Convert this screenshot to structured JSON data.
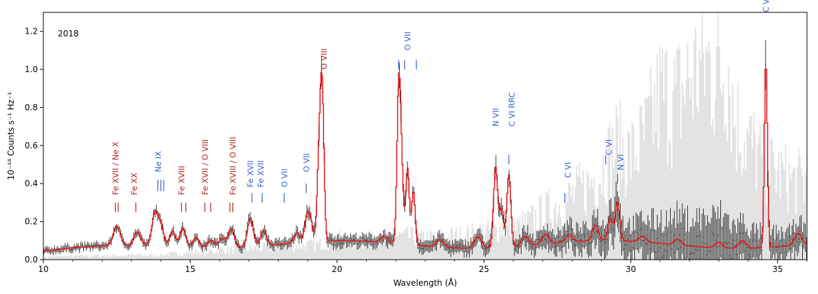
{
  "chart_data": {
    "type": "line",
    "title": "",
    "annotation_year": "2018",
    "xlabel": "Wavelength (Å)",
    "ylabel": "10⁻¹⁸ Counts s⁻¹ Hz⁻¹",
    "xlim": [
      10,
      36
    ],
    "ylim": [
      0,
      1.3
    ],
    "xticks": [
      10,
      15,
      20,
      25,
      30,
      35
    ],
    "yticks": [
      0.0,
      0.2,
      0.4,
      0.6,
      0.8,
      1.0,
      1.2
    ],
    "ytick_labels": [
      "0.0",
      "0.2",
      "0.4",
      "0.6",
      "0.8",
      "1.0",
      "1.2"
    ],
    "grid": false,
    "colors": {
      "model": "#e41a1c",
      "data": "#000000",
      "background": "#e3e3e3",
      "fe_label": "#b22222",
      "o_label": "#3a5fcd"
    },
    "background_envelope": [
      [
        10,
        0.02
      ],
      [
        14,
        0.03
      ],
      [
        16,
        0.06
      ],
      [
        18,
        0.08
      ],
      [
        19.5,
        0.1
      ],
      [
        20,
        0.14
      ],
      [
        20.5,
        0.1
      ],
      [
        21,
        0.13
      ],
      [
        21.5,
        0.12
      ],
      [
        22,
        0.15
      ],
      [
        23,
        0.14
      ],
      [
        24,
        0.15
      ],
      [
        25,
        0.18
      ],
      [
        26,
        0.2
      ],
      [
        26.5,
        0.24
      ],
      [
        27,
        0.3
      ],
      [
        27.5,
        0.35
      ],
      [
        28,
        0.4
      ],
      [
        28.5,
        0.47
      ],
      [
        29,
        0.58
      ],
      [
        29.5,
        0.72
      ],
      [
        30,
        0.65
      ],
      [
        30.5,
        0.78
      ],
      [
        31,
        1.05
      ],
      [
        31.5,
        1.0
      ],
      [
        32,
        1.15
      ],
      [
        32.5,
        1.25
      ],
      [
        33,
        1.2
      ],
      [
        33.3,
        1.28
      ],
      [
        33.5,
        0.9
      ],
      [
        34,
        0.75
      ],
      [
        34.5,
        0.6
      ],
      [
        35,
        0.55
      ],
      [
        35.5,
        0.5
      ],
      [
        36,
        0.5
      ]
    ],
    "model_peaks": [
      {
        "center": 12.5,
        "height": 0.1,
        "width": 0.12
      },
      {
        "center": 13.2,
        "height": 0.07,
        "width": 0.12
      },
      {
        "center": 13.8,
        "height": 0.17,
        "width": 0.1
      },
      {
        "center": 14.0,
        "height": 0.1,
        "width": 0.1
      },
      {
        "center": 14.4,
        "height": 0.08,
        "width": 0.1
      },
      {
        "center": 14.75,
        "height": 0.1,
        "width": 0.1
      },
      {
        "center": 15.2,
        "height": 0.05,
        "width": 0.12
      },
      {
        "center": 15.7,
        "height": 0.04,
        "width": 0.12
      },
      {
        "center": 16.1,
        "height": 0.05,
        "width": 0.12
      },
      {
        "center": 16.4,
        "height": 0.1,
        "width": 0.1
      },
      {
        "center": 17.05,
        "height": 0.15,
        "width": 0.1
      },
      {
        "center": 17.5,
        "height": 0.08,
        "width": 0.1
      },
      {
        "center": 18.63,
        "height": 0.05,
        "width": 0.1
      },
      {
        "center": 18.97,
        "height": 0.12,
        "width": 0.08
      },
      {
        "center": 19.1,
        "height": 0.1,
        "width": 0.08
      },
      {
        "center": 19.4,
        "height": 0.48,
        "width": 0.07
      },
      {
        "center": 19.5,
        "height": 0.68,
        "width": 0.06
      },
      {
        "center": 21.6,
        "height": 0.03,
        "width": 0.12
      },
      {
        "center": 22.1,
        "height": 0.8,
        "width": 0.06
      },
      {
        "center": 22.2,
        "height": 0.35,
        "width": 0.06
      },
      {
        "center": 22.4,
        "height": 0.4,
        "width": 0.06
      },
      {
        "center": 22.6,
        "height": 0.28,
        "width": 0.06
      },
      {
        "center": 23.5,
        "height": 0.04,
        "width": 0.12
      },
      {
        "center": 24.8,
        "height": 0.06,
        "width": 0.12
      },
      {
        "center": 25.4,
        "height": 0.42,
        "width": 0.07
      },
      {
        "center": 25.6,
        "height": 0.2,
        "width": 0.07
      },
      {
        "center": 25.85,
        "height": 0.38,
        "width": 0.07
      },
      {
        "center": 26.4,
        "height": 0.05,
        "width": 0.12
      },
      {
        "center": 27.1,
        "height": 0.05,
        "width": 0.12
      },
      {
        "center": 27.9,
        "height": 0.04,
        "width": 0.12
      },
      {
        "center": 28.8,
        "height": 0.08,
        "width": 0.1
      },
      {
        "center": 29.3,
        "height": 0.12,
        "width": 0.08
      },
      {
        "center": 29.55,
        "height": 0.2,
        "width": 0.08
      },
      {
        "center": 30.4,
        "height": 0.03,
        "width": 0.12
      },
      {
        "center": 31.6,
        "height": 0.03,
        "width": 0.12
      },
      {
        "center": 33.0,
        "height": 0.03,
        "width": 0.12
      },
      {
        "center": 33.8,
        "height": 0.04,
        "width": 0.12
      },
      {
        "center": 34.6,
        "height": 0.98,
        "width": 0.05
      },
      {
        "center": 35.7,
        "height": 0.06,
        "width": 0.12
      }
    ],
    "line_labels": [
      {
        "text": "Fe XVII / Ne X",
        "x": 12.55,
        "y": 0.34,
        "ticks": [
          12.45,
          12.55
        ],
        "tick_y": [
          0.25,
          0.3
        ],
        "color": "fe"
      },
      {
        "text": "Fe XX",
        "x": 13.18,
        "y": 0.34,
        "ticks": [
          13.15
        ],
        "tick_y": [
          0.25,
          0.3
        ],
        "color": "fe"
      },
      {
        "text": "Ne IX",
        "x": 14.0,
        "y": 0.46,
        "ticks": [
          13.9,
          14.0,
          14.1
        ],
        "tick_y": [
          0.36,
          0.42
        ],
        "color": "o"
      },
      {
        "text": "Fe XVIII",
        "x": 14.8,
        "y": 0.34,
        "ticks": [
          14.7,
          14.85
        ],
        "tick_y": [
          0.25,
          0.3
        ],
        "color": "fe"
      },
      {
        "text": "Fe XVII / O VIII",
        "x": 15.6,
        "y": 0.34,
        "ticks": [
          15.5,
          15.7
        ],
        "tick_y": [
          0.25,
          0.3
        ],
        "color": "fe"
      },
      {
        "text": "Fe XVIII / O VIII",
        "x": 16.55,
        "y": 0.34,
        "ticks": [
          16.35,
          16.45
        ],
        "tick_y": [
          0.25,
          0.3
        ],
        "color": "fe"
      },
      {
        "text": "Fe XVII",
        "x": 17.15,
        "y": 0.38,
        "ticks": [
          17.1
        ],
        "tick_y": [
          0.3,
          0.35
        ],
        "color": "o"
      },
      {
        "text": "Fe XVII",
        "x": 17.5,
        "y": 0.38,
        "ticks": [
          17.45
        ],
        "tick_y": [
          0.3,
          0.35
        ],
        "color": "o"
      },
      {
        "text": "O VII",
        "x": 18.3,
        "y": 0.38,
        "ticks": [
          18.2
        ],
        "tick_y": [
          0.3,
          0.35
        ],
        "color": "o"
      },
      {
        "text": "O VII",
        "x": 19.05,
        "y": 0.46,
        "ticks": [
          18.95
        ],
        "tick_y": [
          0.35,
          0.4
        ],
        "color": "o"
      },
      {
        "text": "O VIII",
        "x": 19.65,
        "y": 1.0,
        "ticks": [],
        "tick_y": [
          0,
          0
        ],
        "color": "fe"
      },
      {
        "text": "O VII",
        "x": 22.5,
        "y": 1.1,
        "ticks": [
          22.1,
          22.3,
          22.7
        ],
        "tick_y": [
          1.0,
          1.05
        ],
        "color": "o"
      },
      {
        "text": "N VII",
        "x": 25.5,
        "y": 0.7,
        "ticks": [],
        "tick_y": [
          0,
          0
        ],
        "color": "o"
      },
      {
        "text": "C VI RRC",
        "x": 26.05,
        "y": 0.7,
        "ticks": [
          25.85
        ],
        "tick_y": [
          0.5,
          0.55
        ],
        "color": "o"
      },
      {
        "text": "C VI",
        "x": 27.95,
        "y": 0.43,
        "ticks": [
          27.75
        ],
        "tick_y": [
          0.3,
          0.35
        ],
        "color": "o"
      },
      {
        "text": "C VI",
        "x": 29.35,
        "y": 0.55,
        "ticks": [
          29.15
        ],
        "tick_y": [
          0.5,
          0.55
        ],
        "color": "o"
      },
      {
        "text": "N VI",
        "x": 29.75,
        "y": 0.47,
        "ticks": [
          29.55
        ],
        "tick_y": [
          0.4,
          0.45
        ],
        "color": "o"
      },
      {
        "text": "C VI",
        "x": 34.7,
        "y": 1.3,
        "ticks": [],
        "tick_y": [
          0,
          0
        ],
        "color": "o"
      }
    ]
  }
}
